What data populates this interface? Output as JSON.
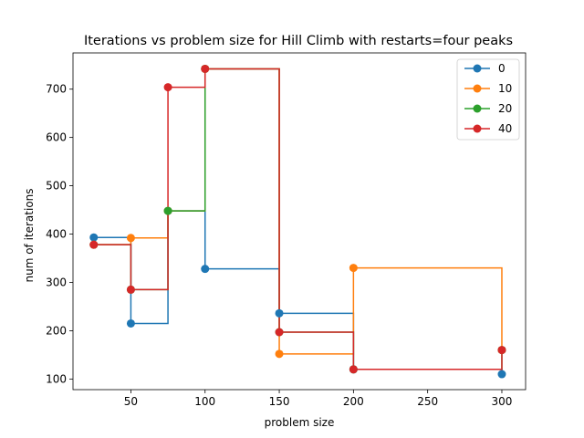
{
  "chart_data": {
    "type": "line",
    "title": "Iterations vs problem size for Hill Climb with restarts=four peaks",
    "xlabel": "problem size",
    "ylabel": "num of iterations",
    "xlim": [
      11,
      316
    ],
    "ylim": [
      78,
      775
    ],
    "xticks": [
      50,
      100,
      150,
      200,
      250,
      300
    ],
    "yticks": [
      100,
      200,
      300,
      400,
      500,
      600,
      700
    ],
    "grid": false,
    "legend_position": "top-right",
    "step": "post",
    "series": [
      {
        "name": "0",
        "color": "#1f77b4",
        "x": [
          25,
          50,
          75,
          100,
          150,
          200,
          300
        ],
        "y": [
          393,
          215,
          448,
          328,
          236,
          120,
          110
        ]
      },
      {
        "name": "10",
        "color": "#ff7f0e",
        "x": [
          25,
          50,
          75,
          100,
          150,
          200,
          300
        ],
        "y": [
          378,
          392,
          448,
          742,
          152,
          330,
          160
        ]
      },
      {
        "name": "20",
        "color": "#2ca02c",
        "x": [
          25,
          50,
          75,
          100,
          150,
          200,
          300
        ],
        "y": [
          378,
          285,
          448,
          742,
          197,
          120,
          160
        ]
      },
      {
        "name": "40",
        "color": "#d62728",
        "x": [
          25,
          50,
          75,
          100,
          150,
          200,
          300
        ],
        "y": [
          378,
          285,
          704,
          742,
          197,
          120,
          160
        ]
      }
    ]
  }
}
